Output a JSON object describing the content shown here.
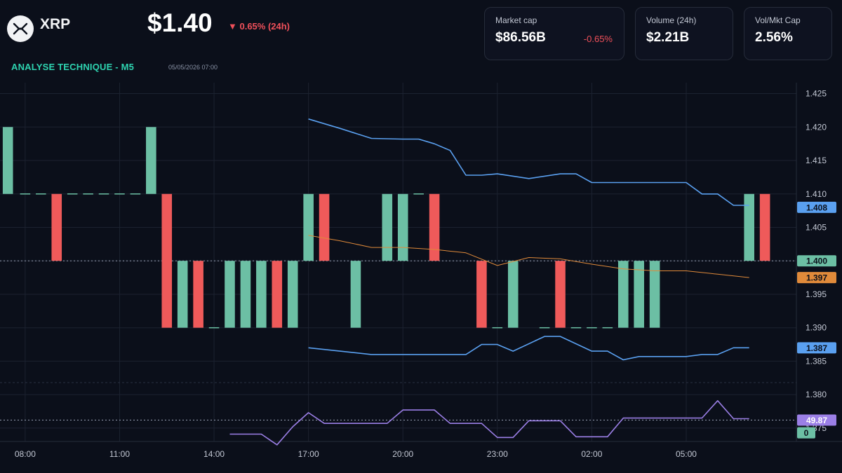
{
  "header": {
    "ticker": "XRP",
    "price": "$1.40",
    "change": "▼ 0.65% (24h)",
    "section_title": "ANALYSE TECHNIQUE - M5",
    "timestamp": "05/05/2026 07:00",
    "logo_icon": "xrp-logo-icon"
  },
  "stats": [
    {
      "label": "Market cap",
      "value": "$86.56B",
      "delta": "-0.65%"
    },
    {
      "label": "Volume (24h)",
      "value": "$2.21B",
      "delta": ""
    },
    {
      "label": "Vol/Mkt Cap",
      "value": "2.56%",
      "delta": ""
    }
  ],
  "colors": {
    "up": "#6cbfa4",
    "down": "#ef5a5a",
    "band": "#5aa0f0",
    "mid": "#e08a3a",
    "rsi": "#9b7fe6",
    "accent": "#2ed3b0",
    "negative": "#f0505a"
  },
  "chart_data": {
    "type": "candlestick",
    "y_ticks": [
      "1.425",
      "1.420",
      "1.415",
      "1.410",
      "1.405",
      "1.400",
      "1.395",
      "1.390",
      "1.385",
      "1.380",
      "1.375"
    ],
    "x_ticks": [
      "08:00",
      "11:00",
      "14:00",
      "17:00",
      "20:00",
      "23:00",
      "02:00",
      "05:00"
    ],
    "ylim": [
      1.373,
      1.426
    ],
    "x_range_hours": [
      7.2,
      32.5
    ],
    "grid": true,
    "price_tags": [
      {
        "label": "1.408",
        "value": 1.408,
        "color": "#5aa0f0",
        "text_color": "#0b0f1a"
      },
      {
        "label": "1.400",
        "value": 1.4,
        "color": "#6cbfa4",
        "text_color": "#0b0f1a"
      },
      {
        "label": "1.397",
        "value": 1.3975,
        "color": "#e08a3a",
        "text_color": "#0b0f1a"
      },
      {
        "label": "1.387",
        "value": 1.387,
        "color": "#5aa0f0",
        "text_color": "#0b0f1a"
      }
    ],
    "candles": [
      {
        "t": 7.45,
        "open": 1.41,
        "close": 1.42
      },
      {
        "t": 8.0,
        "open": 1.41,
        "close": 1.41
      },
      {
        "t": 8.5,
        "open": 1.41,
        "close": 1.41
      },
      {
        "t": 9.0,
        "open": 1.41,
        "close": 1.4
      },
      {
        "t": 9.5,
        "open": 1.41,
        "close": 1.41
      },
      {
        "t": 10.0,
        "open": 1.41,
        "close": 1.41
      },
      {
        "t": 10.5,
        "open": 1.41,
        "close": 1.41
      },
      {
        "t": 11.0,
        "open": 1.41,
        "close": 1.41
      },
      {
        "t": 11.5,
        "open": 1.41,
        "close": 1.41
      },
      {
        "t": 12.0,
        "open": 1.41,
        "close": 1.42
      },
      {
        "t": 12.5,
        "open": 1.41,
        "close": 1.39
      },
      {
        "t": 13.0,
        "open": 1.39,
        "close": 1.4
      },
      {
        "t": 13.5,
        "open": 1.4,
        "close": 1.39
      },
      {
        "t": 14.0,
        "open": 1.39,
        "close": 1.39
      },
      {
        "t": 14.5,
        "open": 1.39,
        "close": 1.4
      },
      {
        "t": 15.0,
        "open": 1.39,
        "close": 1.4
      },
      {
        "t": 15.5,
        "open": 1.39,
        "close": 1.4
      },
      {
        "t": 16.0,
        "open": 1.4,
        "close": 1.39
      },
      {
        "t": 16.5,
        "open": 1.39,
        "close": 1.4
      },
      {
        "t": 17.0,
        "open": 1.4,
        "close": 1.41
      },
      {
        "t": 17.5,
        "open": 1.41,
        "close": 1.4
      },
      {
        "t": 18.5,
        "open": 1.39,
        "close": 1.4
      },
      {
        "t": 19.5,
        "open": 1.4,
        "close": 1.41
      },
      {
        "t": 20.0,
        "open": 1.4,
        "close": 1.41
      },
      {
        "t": 20.5,
        "open": 1.41,
        "close": 1.41
      },
      {
        "t": 21.0,
        "open": 1.41,
        "close": 1.4
      },
      {
        "t": 22.5,
        "open": 1.4,
        "close": 1.39
      },
      {
        "t": 23.0,
        "open": 1.39,
        "close": 1.39
      },
      {
        "t": 23.5,
        "open": 1.39,
        "close": 1.4
      },
      {
        "t": 24.5,
        "open": 1.39,
        "close": 1.39
      },
      {
        "t": 25.0,
        "open": 1.4,
        "close": 1.39
      },
      {
        "t": 25.5,
        "open": 1.39,
        "close": 1.39
      },
      {
        "t": 26.0,
        "open": 1.39,
        "close": 1.39
      },
      {
        "t": 26.5,
        "open": 1.39,
        "close": 1.39
      },
      {
        "t": 27.0,
        "open": 1.39,
        "close": 1.4
      },
      {
        "t": 27.5,
        "open": 1.39,
        "close": 1.4
      },
      {
        "t": 28.0,
        "open": 1.39,
        "close": 1.4
      },
      {
        "t": 31.0,
        "open": 1.4,
        "close": 1.41
      },
      {
        "t": 31.5,
        "open": 1.41,
        "close": 1.4
      }
    ],
    "bollinger_upper": [
      [
        17.0,
        1.4212
      ],
      [
        18.0,
        1.4198
      ],
      [
        19.0,
        1.4183
      ],
      [
        20.0,
        1.4182
      ],
      [
        20.5,
        1.4182
      ],
      [
        21.0,
        1.4175
      ],
      [
        21.5,
        1.4165
      ],
      [
        22.0,
        1.4128
      ],
      [
        22.5,
        1.4128
      ],
      [
        23.0,
        1.413
      ],
      [
        24.0,
        1.4123
      ],
      [
        25.0,
        1.413
      ],
      [
        25.5,
        1.413
      ],
      [
        26.0,
        1.4117
      ],
      [
        27.0,
        1.4117
      ],
      [
        28.0,
        1.4117
      ],
      [
        29.0,
        1.4117
      ],
      [
        29.5,
        1.41
      ],
      [
        30.0,
        1.41
      ],
      [
        30.5,
        1.4083
      ],
      [
        31.0,
        1.4083
      ]
    ],
    "bollinger_mid": [
      [
        17.0,
        1.4038
      ],
      [
        18.0,
        1.403
      ],
      [
        19.0,
        1.402
      ],
      [
        20.0,
        1.402
      ],
      [
        21.0,
        1.4017
      ],
      [
        22.0,
        1.4012
      ],
      [
        23.0,
        1.3993
      ],
      [
        24.0,
        1.4005
      ],
      [
        25.0,
        1.4003
      ],
      [
        26.0,
        1.3995
      ],
      [
        27.0,
        1.3988
      ],
      [
        28.0,
        1.3985
      ],
      [
        29.0,
        1.3985
      ],
      [
        30.0,
        1.398
      ],
      [
        31.0,
        1.3975
      ]
    ],
    "bollinger_lower": [
      [
        17.0,
        1.387
      ],
      [
        18.0,
        1.3865
      ],
      [
        19.0,
        1.386
      ],
      [
        20.0,
        1.386
      ],
      [
        21.0,
        1.386
      ],
      [
        22.0,
        1.386
      ],
      [
        22.5,
        1.3875
      ],
      [
        23.0,
        1.3875
      ],
      [
        23.5,
        1.3865
      ],
      [
        24.5,
        1.3887
      ],
      [
        25.0,
        1.3887
      ],
      [
        26.0,
        1.3865
      ],
      [
        26.5,
        1.3865
      ],
      [
        27.0,
        1.3852
      ],
      [
        27.5,
        1.3857
      ],
      [
        28.0,
        1.3857
      ],
      [
        29.0,
        1.3857
      ],
      [
        29.5,
        1.386
      ],
      [
        30.0,
        1.386
      ],
      [
        30.5,
        1.387
      ],
      [
        31.0,
        1.387
      ]
    ],
    "rsi": {
      "label": "49.87",
      "tag_color": "#9b7fe6",
      "zero_label": "0",
      "zero_color": "#6cbfa4",
      "points": [
        [
          14.5,
          1.3741
        ],
        [
          15.5,
          1.3741
        ],
        [
          16.0,
          1.3725
        ],
        [
          16.5,
          1.3752
        ],
        [
          17.0,
          1.3773
        ],
        [
          17.5,
          1.3757
        ],
        [
          18.5,
          1.3757
        ],
        [
          19.5,
          1.3757
        ],
        [
          20.0,
          1.3777
        ],
        [
          21.0,
          1.3777
        ],
        [
          21.5,
          1.3757
        ],
        [
          22.5,
          1.3757
        ],
        [
          23.0,
          1.3736
        ],
        [
          23.5,
          1.3736
        ],
        [
          24.0,
          1.3761
        ],
        [
          25.0,
          1.3761
        ],
        [
          25.5,
          1.3737
        ],
        [
          26.5,
          1.3737
        ],
        [
          27.0,
          1.3765
        ],
        [
          29.0,
          1.3765
        ],
        [
          29.5,
          1.3765
        ],
        [
          30.0,
          1.3791
        ],
        [
          30.5,
          1.3764
        ],
        [
          31.0,
          1.3764
        ]
      ]
    }
  }
}
